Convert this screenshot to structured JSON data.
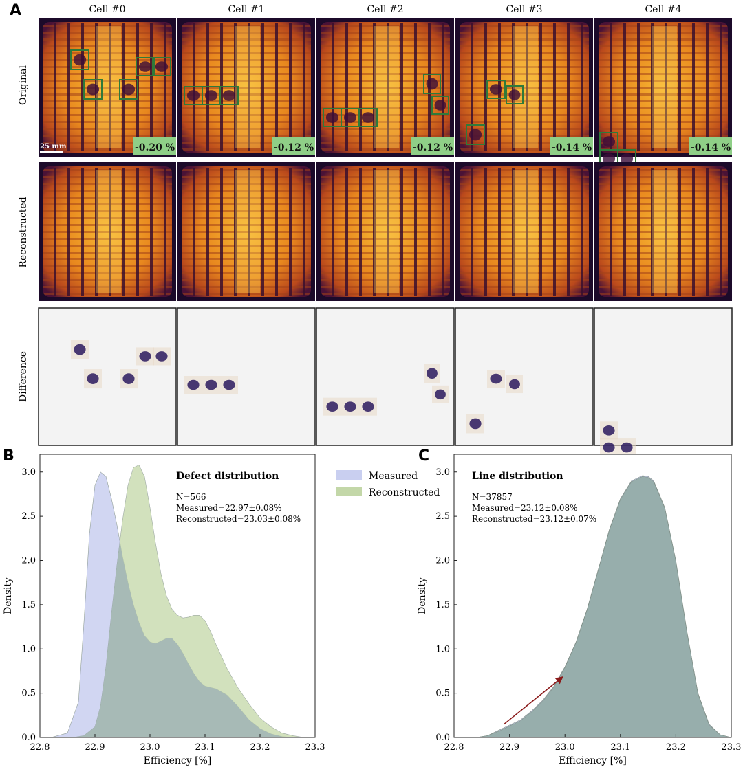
{
  "panel_labels": {
    "a": "A",
    "b": "B",
    "c": "C"
  },
  "row_labels": {
    "original": "Original",
    "reconstructed": "Reconstructed",
    "difference": "Difference"
  },
  "scale_bar": "25 mm",
  "cells": [
    {
      "title": "Cell #0",
      "loss": "-0.20 %"
    },
    {
      "title": "Cell #1",
      "loss": "-0.12 %"
    },
    {
      "title": "Cell #2",
      "loss": "-0.12 %"
    },
    {
      "title": "Cell #3",
      "loss": "-0.14 %"
    },
    {
      "title": "Cell #4",
      "loss": "-0.14 %"
    }
  ],
  "colors": {
    "measured_fill": "#c9cff0",
    "reconstructed_fill": "#c3d7a8",
    "overlap_fill": "#a7bab6",
    "line_overlap_fill": "#97aeac",
    "edge": "#7f8e86",
    "badge": "#8fcf87",
    "box": "#2f7a3a",
    "arrow": "#8b1a1a",
    "diff_bg": "#f3f3f3",
    "diff_ink": "#2a1a5e"
  },
  "legend": {
    "measured": "Measured",
    "reconstructed": "Reconstructed"
  },
  "chart_data": [
    {
      "panel": "B",
      "type": "area",
      "title": "Defect distribution",
      "annotations": [
        "N=566",
        "Measured=22.97±0.08%",
        "Reconstructed=23.03±0.08%"
      ],
      "xlabel": "Efficiency [%]",
      "ylabel": "Density",
      "xlim": [
        22.8,
        23.3
      ],
      "ylim": [
        0.0,
        3.2
      ],
      "xticks": [
        "22.8",
        "22.9",
        "23.0",
        "23.1",
        "23.2",
        "23.3"
      ],
      "yticks": [
        "0.0",
        "0.5",
        "1.0",
        "1.5",
        "2.0",
        "2.5",
        "3.0"
      ],
      "series": [
        {
          "name": "Measured",
          "x": [
            22.82,
            22.85,
            22.87,
            22.88,
            22.89,
            22.9,
            22.91,
            22.92,
            22.93,
            22.94,
            22.95,
            22.96,
            22.97,
            22.98,
            22.99,
            23.0,
            23.01,
            23.02,
            23.03,
            23.04,
            23.05,
            23.06,
            23.07,
            23.08,
            23.09,
            23.1,
            23.12,
            23.14,
            23.16,
            23.18,
            23.2,
            23.22,
            23.24,
            23.26,
            23.28
          ],
          "values": [
            0.0,
            0.05,
            0.4,
            1.3,
            2.3,
            2.85,
            3.0,
            2.95,
            2.7,
            2.4,
            2.05,
            1.75,
            1.5,
            1.3,
            1.15,
            1.08,
            1.06,
            1.09,
            1.12,
            1.12,
            1.05,
            0.95,
            0.83,
            0.72,
            0.63,
            0.58,
            0.55,
            0.48,
            0.35,
            0.2,
            0.1,
            0.04,
            0.01,
            0.0,
            0.0
          ]
        },
        {
          "name": "Reconstructed",
          "x": [
            22.86,
            22.88,
            22.9,
            22.91,
            22.92,
            22.93,
            22.94,
            22.95,
            22.96,
            22.97,
            22.98,
            22.99,
            23.0,
            23.01,
            23.02,
            23.03,
            23.04,
            23.05,
            23.06,
            23.07,
            23.08,
            23.09,
            23.1,
            23.11,
            23.12,
            23.14,
            23.16,
            23.18,
            23.2,
            23.22,
            23.24,
            23.26,
            23.28
          ],
          "values": [
            0.0,
            0.02,
            0.12,
            0.35,
            0.8,
            1.4,
            1.95,
            2.45,
            2.85,
            3.05,
            3.08,
            2.95,
            2.6,
            2.2,
            1.85,
            1.6,
            1.45,
            1.38,
            1.35,
            1.36,
            1.38,
            1.38,
            1.32,
            1.2,
            1.05,
            0.78,
            0.56,
            0.38,
            0.22,
            0.12,
            0.05,
            0.02,
            0.0
          ]
        }
      ]
    },
    {
      "panel": "C",
      "type": "area",
      "title": "Line distribution",
      "annotations": [
        "N=37857",
        "Measured=23.12±0.08%",
        "Reconstructed=23.12±0.07%"
      ],
      "xlabel": "Efficiency [%]",
      "ylabel": "Density",
      "xlim": [
        22.8,
        23.3
      ],
      "ylim": [
        0.0,
        3.2
      ],
      "xticks": [
        "22.8",
        "22.9",
        "23.0",
        "23.1",
        "23.2",
        "23.3"
      ],
      "yticks": [
        "0.0",
        "0.5",
        "1.0",
        "1.5",
        "2.0",
        "2.5",
        "3.0"
      ],
      "arrow": {
        "from": [
          22.89,
          0.15
        ],
        "to": [
          22.995,
          0.68
        ]
      },
      "series": [
        {
          "name": "Measured",
          "x": [
            22.84,
            22.86,
            22.88,
            22.9,
            22.92,
            22.94,
            22.96,
            22.98,
            23.0,
            23.02,
            23.04,
            23.06,
            23.08,
            23.1,
            23.12,
            23.14,
            23.15,
            23.16,
            23.18,
            23.2,
            23.22,
            23.24,
            23.26,
            23.28,
            23.3
          ],
          "values": [
            0.0,
            0.02,
            0.08,
            0.14,
            0.2,
            0.3,
            0.42,
            0.58,
            0.8,
            1.08,
            1.45,
            1.9,
            2.35,
            2.7,
            2.9,
            2.96,
            2.95,
            2.9,
            2.6,
            2.0,
            1.2,
            0.5,
            0.15,
            0.03,
            0.0
          ]
        },
        {
          "name": "Reconstructed",
          "x": [
            22.84,
            22.86,
            22.88,
            22.9,
            22.92,
            22.94,
            22.96,
            22.98,
            23.0,
            23.02,
            23.04,
            23.06,
            23.08,
            23.1,
            23.12,
            23.14,
            23.15,
            23.16,
            23.18,
            23.2,
            23.22,
            23.24,
            23.26,
            23.28,
            23.3
          ],
          "values": [
            0.0,
            0.02,
            0.07,
            0.13,
            0.19,
            0.29,
            0.41,
            0.57,
            0.79,
            1.07,
            1.44,
            1.89,
            2.34,
            2.69,
            2.89,
            2.95,
            2.94,
            2.89,
            2.59,
            1.99,
            1.19,
            0.49,
            0.14,
            0.03,
            0.0
          ]
        }
      ]
    }
  ]
}
